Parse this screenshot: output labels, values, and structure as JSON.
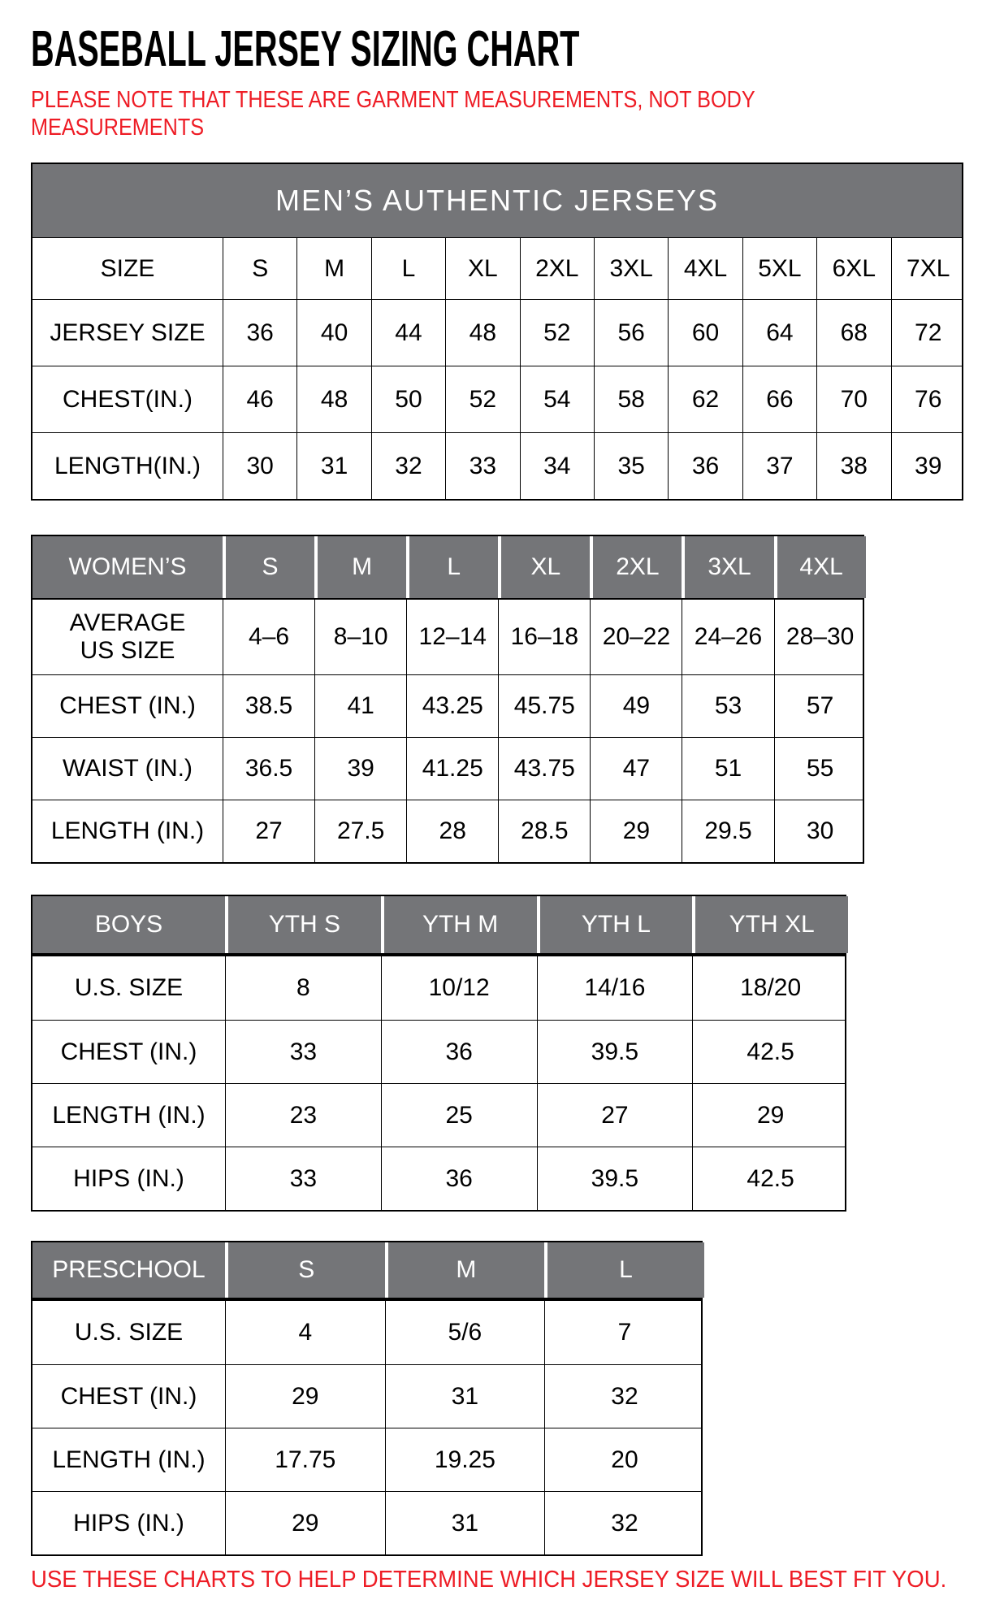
{
  "page": {
    "title": "BASEBALL JERSEY SIZING CHART",
    "note_line1": "PLEASE NOTE THAT THESE ARE GARMENT MEASUREMENTS, NOT BODY",
    "note_line2": "MEASUREMENTS",
    "footer": "USE THESE CHARTS TO HELP DETERMINE WHICH JERSEY SIZE WILL BEST FIT YOU.",
    "colors": {
      "accent_red": "#ee1c25",
      "header_gray": "#747578",
      "grid_black": "#000000"
    }
  },
  "tables": [
    {
      "id": "mens",
      "banner": "MEN’S AUTHENTIC JERSEYS",
      "gray_header": false,
      "columns": [
        "SIZE",
        "S",
        "M",
        "L",
        "XL",
        "2XL",
        "3XL",
        "4XL",
        "5XL",
        "6XL",
        "7XL"
      ],
      "rows": [
        {
          "label": "JERSEY SIZE",
          "values": [
            "36",
            "40",
            "44",
            "48",
            "52",
            "56",
            "60",
            "64",
            "68",
            "72"
          ]
        },
        {
          "label": "CHEST(IN.)",
          "values": [
            "46",
            "48",
            "50",
            "52",
            "54",
            "58",
            "62",
            "66",
            "70",
            "76"
          ]
        },
        {
          "label": "LENGTH(IN.)",
          "values": [
            "30",
            "31",
            "32",
            "33",
            "34",
            "35",
            "36",
            "37",
            "38",
            "39"
          ]
        }
      ]
    },
    {
      "id": "womens",
      "gray_header": true,
      "columns": [
        "WOMEN’S",
        "S",
        "M",
        "L",
        "XL",
        "2XL",
        "3XL",
        "4XL"
      ],
      "rows": [
        {
          "label": "AVERAGE\nUS SIZE",
          "values": [
            "4–6",
            "8–10",
            "12–14",
            "16–18",
            "20–22",
            "24–26",
            "28–30"
          ]
        },
        {
          "label": "CHEST (IN.)",
          "values": [
            "38.5",
            "41",
            "43.25",
            "45.75",
            "49",
            "53",
            "57"
          ]
        },
        {
          "label": "WAIST (IN.)",
          "values": [
            "36.5",
            "39",
            "41.25",
            "43.75",
            "47",
            "51",
            "55"
          ]
        },
        {
          "label": "LENGTH (IN.)",
          "values": [
            "27",
            "27.5",
            "28",
            "28.5",
            "29",
            "29.5",
            "30"
          ]
        }
      ]
    },
    {
      "id": "boys",
      "gray_header": true,
      "columns": [
        "BOYS",
        "YTH S",
        "YTH M",
        "YTH L",
        "YTH XL"
      ],
      "rows": [
        {
          "label": "U.S. SIZE",
          "values": [
            "8",
            "10/12",
            "14/16",
            "18/20"
          ]
        },
        {
          "label": "CHEST (IN.)",
          "values": [
            "33",
            "36",
            "39.5",
            "42.5"
          ]
        },
        {
          "label": "LENGTH (IN.)",
          "values": [
            "23",
            "25",
            "27",
            "29"
          ]
        },
        {
          "label": "HIPS (IN.)",
          "values": [
            "33",
            "36",
            "39.5",
            "42.5"
          ]
        }
      ]
    },
    {
      "id": "preschool",
      "gray_header": true,
      "columns": [
        "PRESCHOOL",
        "S",
        "M",
        "L"
      ],
      "rows": [
        {
          "label": "U.S. SIZE",
          "values": [
            "4",
            "5/6",
            "7"
          ]
        },
        {
          "label": "CHEST (IN.)",
          "values": [
            "29",
            "31",
            "32"
          ]
        },
        {
          "label": "LENGTH (IN.)",
          "values": [
            "17.75",
            "19.25",
            "20"
          ]
        },
        {
          "label": "HIPS (IN.)",
          "values": [
            "29",
            "31",
            "32"
          ]
        }
      ]
    }
  ]
}
